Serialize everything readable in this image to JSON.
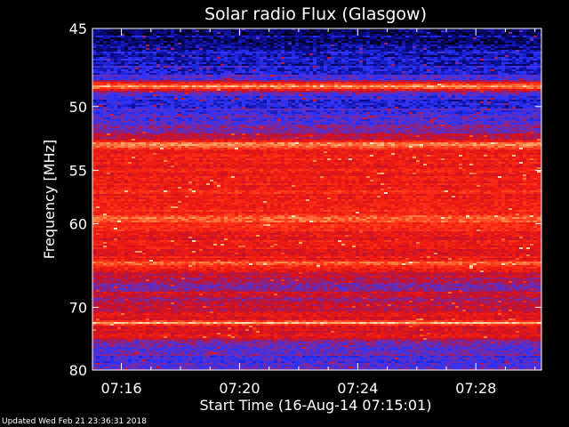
{
  "chart_data": {
    "type": "heatmap",
    "title": "Solar radio Flux (Glasgow)",
    "xlabel": "Start Time (16-Aug-14 07:15:01)",
    "ylabel": "Frequency [MHz]",
    "x_ticks": [
      {
        "label": "07:16",
        "value": 0.98
      },
      {
        "label": "07:20",
        "value": 4.98
      },
      {
        "label": "07:24",
        "value": 8.98
      },
      {
        "label": "07:28",
        "value": 12.98
      }
    ],
    "y_ticks": [
      45,
      50,
      55,
      60,
      70,
      80
    ],
    "y_scale": "reciprocal",
    "xlim_minutes": [
      0,
      15.2
    ],
    "ylim_mhz": [
      45,
      80
    ],
    "colormap": [
      "#000000",
      "#0a0a8c",
      "#2a34ff",
      "#7a2aa0",
      "#c4102a",
      "#ee1a10",
      "#ff3a1a",
      "#ff8a4a",
      "#ffe0c0"
    ],
    "intensity_profile": [
      {
        "mhz": 45.0,
        "level": 0.05
      },
      {
        "mhz": 45.5,
        "level": 0.12
      },
      {
        "mhz": 46.8,
        "level": 0.18
      },
      {
        "mhz": 47.6,
        "level": 0.22
      },
      {
        "mhz": 48.2,
        "level": 0.35
      },
      {
        "mhz": 48.6,
        "level": 0.95
      },
      {
        "mhz": 49.1,
        "level": 0.3
      },
      {
        "mhz": 49.6,
        "level": 0.25
      },
      {
        "mhz": 50.4,
        "level": 0.28
      },
      {
        "mhz": 51.2,
        "level": 0.3
      },
      {
        "mhz": 51.9,
        "level": 0.4
      },
      {
        "mhz": 52.5,
        "level": 0.55
      },
      {
        "mhz": 52.8,
        "level": 0.9
      },
      {
        "mhz": 53.4,
        "level": 0.62
      },
      {
        "mhz": 55.0,
        "level": 0.64
      },
      {
        "mhz": 57.0,
        "level": 0.66
      },
      {
        "mhz": 59.0,
        "level": 0.68
      },
      {
        "mhz": 59.5,
        "level": 0.9
      },
      {
        "mhz": 60.0,
        "level": 0.66
      },
      {
        "mhz": 62.0,
        "level": 0.6
      },
      {
        "mhz": 64.0,
        "level": 0.64
      },
      {
        "mhz": 64.4,
        "level": 0.85
      },
      {
        "mhz": 65.0,
        "level": 0.58
      },
      {
        "mhz": 66.5,
        "level": 0.48
      },
      {
        "mhz": 67.5,
        "level": 0.4
      },
      {
        "mhz": 68.3,
        "level": 0.55
      },
      {
        "mhz": 69.0,
        "level": 0.42
      },
      {
        "mhz": 70.0,
        "level": 0.5
      },
      {
        "mhz": 71.0,
        "level": 0.55
      },
      {
        "mhz": 71.8,
        "level": 0.6
      },
      {
        "mhz": 72.2,
        "level": 0.92
      },
      {
        "mhz": 72.8,
        "level": 0.55
      },
      {
        "mhz": 74.0,
        "level": 0.62
      },
      {
        "mhz": 74.8,
        "level": 0.45
      },
      {
        "mhz": 76.0,
        "level": 0.36
      },
      {
        "mhz": 78.0,
        "level": 0.33
      },
      {
        "mhz": 80.0,
        "level": 0.3
      }
    ]
  },
  "footer": {
    "updated": "Updated Wed Feb 21 23:36:31 2018"
  }
}
